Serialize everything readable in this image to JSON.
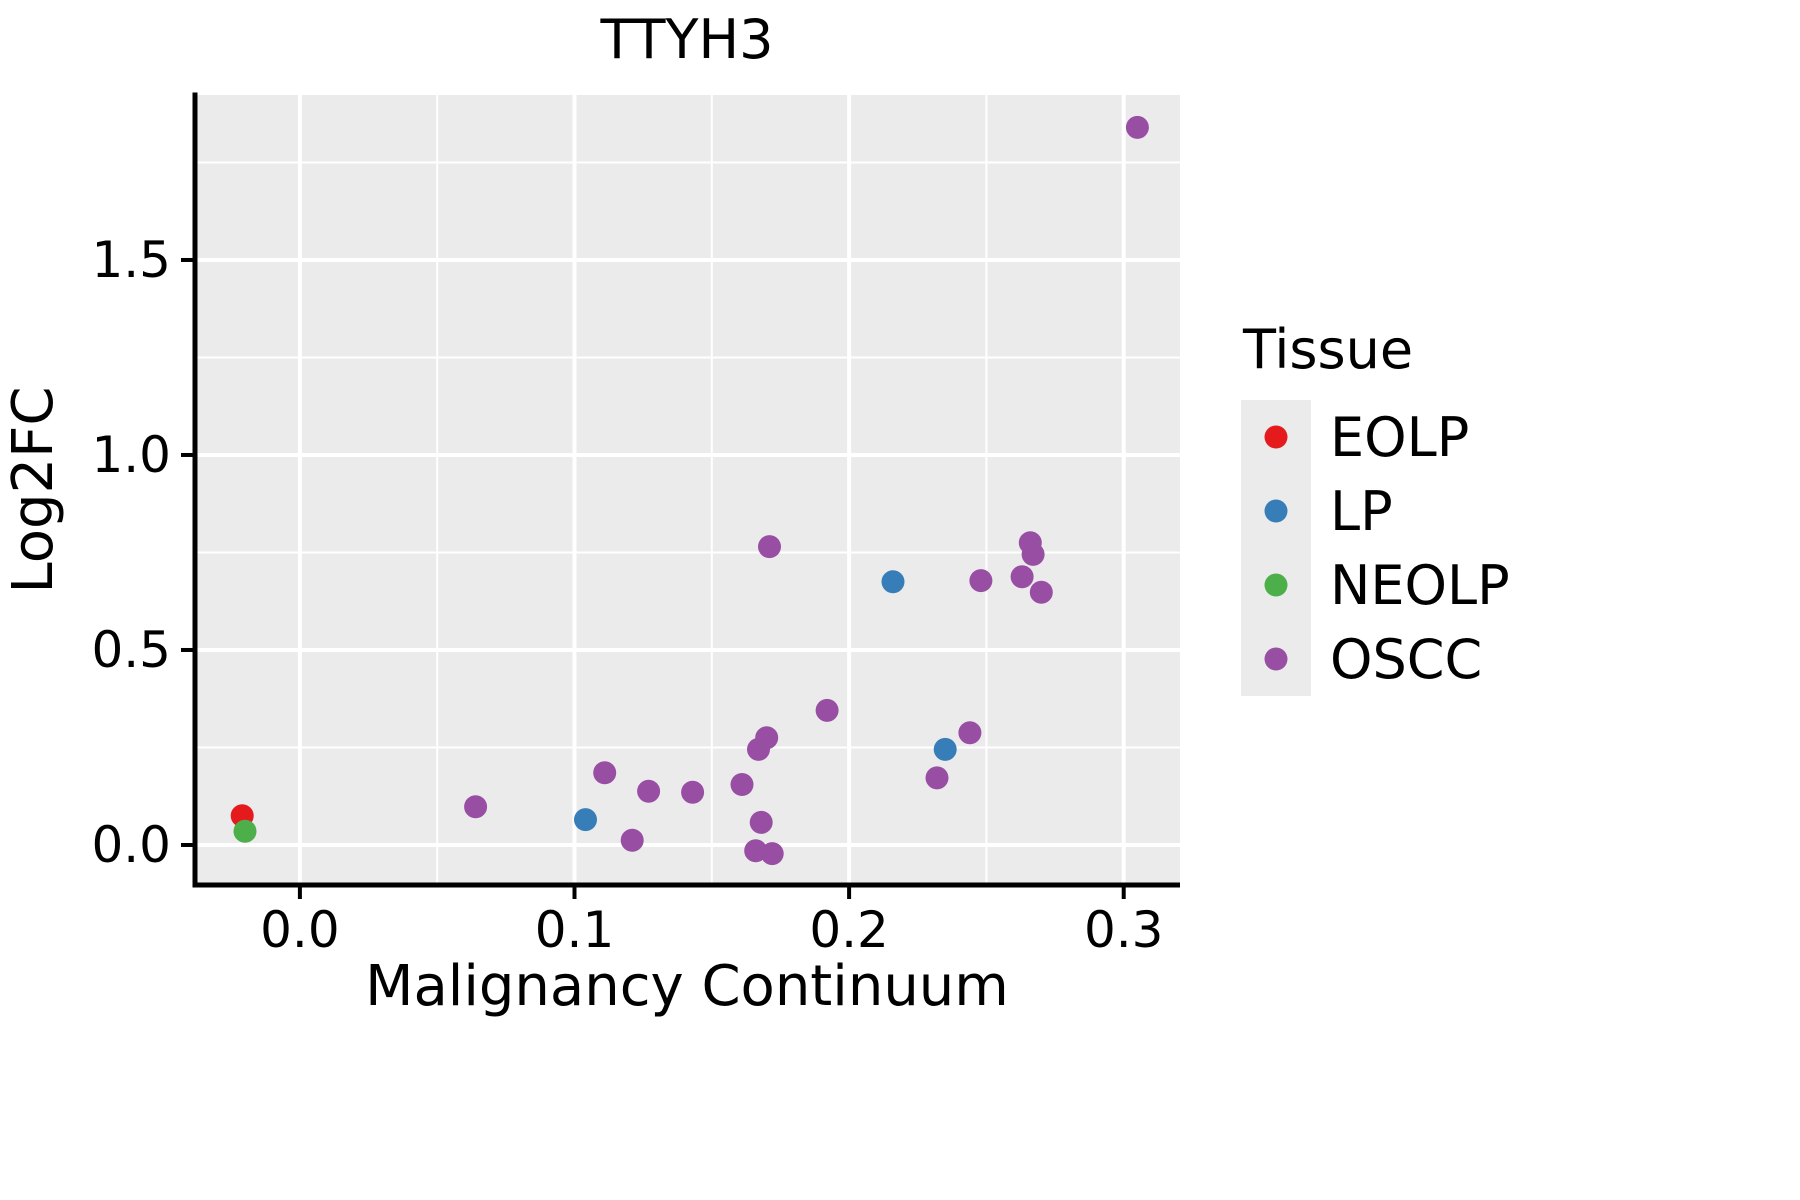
{
  "chart_data": {
    "type": "scatter",
    "title": "TTYH3",
    "xlabel": "Malignancy Continuum",
    "ylabel": "Log2FC",
    "xlim": [
      -0.0382,
      0.3205
    ],
    "ylim": [
      -0.1026,
      1.923
    ],
    "grid": true,
    "panel_bg": "#EBEBEB",
    "grid_color": "#FFFFFF",
    "axis_color": "#000000",
    "point_radius": 11.5,
    "x_ticks": {
      "values": [
        0.0,
        0.1,
        0.2,
        0.3
      ],
      "labels": [
        "0.0",
        "0.1",
        "0.2",
        "0.3"
      ],
      "minor": [
        0.05,
        0.15,
        0.25
      ]
    },
    "y_ticks": {
      "values": [
        0.0,
        0.5,
        1.0,
        1.5
      ],
      "labels": [
        "0.0",
        "0.5",
        "1.0",
        "1.5"
      ],
      "minor": [
        0.25,
        0.75,
        1.25,
        1.75
      ]
    },
    "legend": {
      "title": "Tissue",
      "position": "right",
      "key_bg": "#EBEBEB"
    },
    "series": [
      {
        "name": "EOLP",
        "color": "#E41A1C",
        "points": [
          [
            -0.021,
            0.075
          ]
        ]
      },
      {
        "name": "LP",
        "color": "#377EB8",
        "points": [
          [
            0.104,
            0.065
          ],
          [
            0.216,
            0.675
          ],
          [
            0.235,
            0.245
          ]
        ]
      },
      {
        "name": "NEOLP",
        "color": "#4DAF4A",
        "points": [
          [
            -0.02,
            0.035
          ]
        ]
      },
      {
        "name": "OSCC",
        "color": "#984EA3",
        "points": [
          [
            0.305,
            1.84
          ],
          [
            0.064,
            0.098
          ],
          [
            0.111,
            0.185
          ],
          [
            0.121,
            0.012
          ],
          [
            0.127,
            0.138
          ],
          [
            0.143,
            0.135
          ],
          [
            0.161,
            0.155
          ],
          [
            0.167,
            0.245
          ],
          [
            0.17,
            0.275
          ],
          [
            0.168,
            0.058
          ],
          [
            0.166,
            -0.015
          ],
          [
            0.172,
            -0.022
          ],
          [
            0.171,
            0.765
          ],
          [
            0.192,
            0.345
          ],
          [
            0.232,
            0.172
          ],
          [
            0.244,
            0.288
          ],
          [
            0.248,
            0.678
          ],
          [
            0.263,
            0.688
          ],
          [
            0.266,
            0.775
          ],
          [
            0.267,
            0.745
          ],
          [
            0.27,
            0.648
          ]
        ]
      }
    ]
  }
}
